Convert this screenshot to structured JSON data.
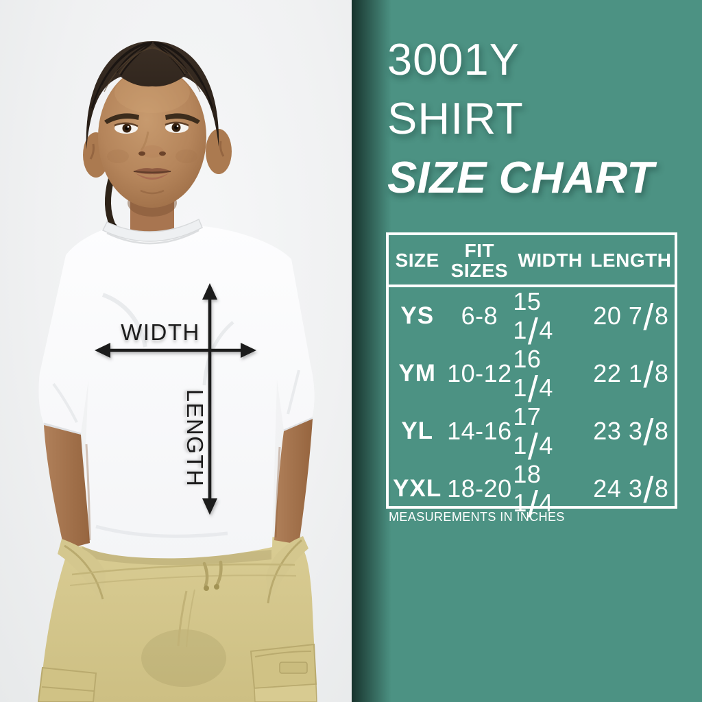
{
  "photo": {
    "width_label": "WIDTH",
    "length_label": "LENGTH",
    "description": "child model wearing white youth t-shirt and khaki cargo shorts with measurement arrows"
  },
  "panel": {
    "title_lines": [
      "3001Y",
      "SHIRT",
      "SIZE CHART"
    ],
    "footnote": "MEASUREMENTS IN INCHES"
  },
  "colors": {
    "panel_bg": "#4c9283",
    "panel_text": "#ffffff",
    "arrow": "#1c1c1c",
    "shirt": "#fbfcfd",
    "shorts_khaki": "#d6c98f"
  },
  "chart_data": {
    "type": "table",
    "title": "3001Y SHIRT SIZE CHART",
    "columns": [
      "SIZE",
      "FIT SIZES",
      "WIDTH",
      "LENGTH"
    ],
    "rows": [
      [
        "YS",
        "6-8",
        "15 1/4",
        "20 7/8"
      ],
      [
        "YM",
        "10-12",
        "16 1/4",
        "22 1/8"
      ],
      [
        "YL",
        "14-16",
        "17 1/4",
        "23 3/8"
      ],
      [
        "YXL",
        "18-20",
        "18 1/4",
        "24 3/8"
      ]
    ],
    "units": "inches",
    "footnote": "MEASUREMENTS IN INCHES"
  }
}
